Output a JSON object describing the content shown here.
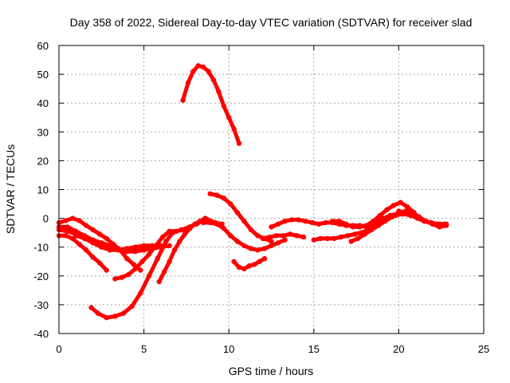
{
  "chart_data": {
    "type": "scatter",
    "title": "Day 358 of 2022, Sidereal Day-to-day VTEC variation (SDTVAR) for receiver slad",
    "xlabel": "GPS time / hours",
    "ylabel": "SDTVAR / TECUs",
    "xlim": [
      0,
      25
    ],
    "ylim": [
      -40,
      60
    ],
    "xticks": [
      0,
      5,
      10,
      15,
      20,
      25
    ],
    "yticks": [
      -40,
      -30,
      -20,
      -10,
      0,
      10,
      20,
      30,
      40,
      50,
      60
    ],
    "grid": true,
    "legend": "none",
    "marker_color": "#ff0000",
    "series": [
      {
        "name": "arc-1",
        "x": [
          7.3,
          7.6,
          7.9,
          8.2,
          8.5,
          8.8,
          9.1,
          9.4,
          9.7,
          10.0,
          10.3,
          10.6
        ],
        "y": [
          41,
          47,
          51,
          53,
          52.5,
          51,
          48,
          44,
          39,
          35,
          31,
          26
        ]
      },
      {
        "name": "arc-2",
        "x": [
          1.9,
          2.3,
          2.8,
          3.3,
          3.8,
          4.3,
          4.8,
          5.3,
          5.8,
          6.3,
          6.7,
          7.2,
          7.7,
          8.1
        ],
        "y": [
          -31,
          -33,
          -34.5,
          -34,
          -33,
          -30.5,
          -26,
          -20,
          -14,
          -8,
          -5,
          -4,
          -3,
          -2
        ]
      },
      {
        "name": "arc-3",
        "x": [
          8.9,
          9.3,
          9.7,
          10.1,
          10.5,
          10.9,
          11.3,
          11.7,
          12.1,
          12.5
        ],
        "y": [
          8.5,
          8,
          7,
          5,
          2,
          -1,
          -4,
          -6,
          -7,
          -8
        ]
      },
      {
        "name": "arc-4",
        "x": [
          0.0,
          0.4,
          0.8,
          1.2,
          1.6,
          2.0,
          2.4,
          2.8,
          3.2,
          3.6,
          4.0,
          4.4,
          4.8
        ],
        "y": [
          -1.5,
          -0.8,
          0,
          -0.8,
          -2.5,
          -4,
          -5.5,
          -7,
          -9,
          -11,
          -14,
          -16,
          -18
        ]
      },
      {
        "name": "arc-5",
        "x": [
          0.0,
          0.5,
          1.0,
          1.5,
          2.0,
          2.5,
          3.0,
          3.5,
          4.0,
          4.5,
          5.0,
          5.5,
          6.0
        ],
        "y": [
          -4,
          -4.5,
          -5.5,
          -7,
          -8.5,
          -10,
          -11,
          -11,
          -10.5,
          -10,
          -9.5,
          -9.5,
          -9.5
        ]
      },
      {
        "name": "arc-6",
        "x": [
          0.0,
          0.4,
          0.8,
          1.2,
          1.6,
          2.0,
          2.4,
          2.8
        ],
        "y": [
          -6,
          -6,
          -7,
          -9,
          -11,
          -13.5,
          -15.5,
          -18
        ]
      },
      {
        "name": "arc-7",
        "x": [
          0.0,
          0.5,
          1.0,
          1.5,
          2.0,
          2.5,
          3.0,
          3.5,
          4.0,
          4.5,
          5.0,
          5.5
        ],
        "y": [
          -3,
          -3,
          -4.5,
          -6,
          -7.5,
          -8.5,
          -9.5,
          -10.5,
          -11.5,
          -11.5,
          -10.5,
          -10
        ]
      },
      {
        "name": "arc-8",
        "x": [
          3.3,
          3.7,
          4.1,
          4.5,
          4.9,
          5.3,
          5.7,
          6.1,
          6.5,
          6.9,
          7.3,
          7.7,
          8.2,
          8.7,
          9.2,
          9.6
        ],
        "y": [
          -21,
          -20.5,
          -19.5,
          -17.5,
          -15,
          -12.5,
          -9.5,
          -6.5,
          -4.5,
          -4.5,
          -4,
          -3,
          -1.5,
          -0.3,
          -1.5,
          -2
        ]
      },
      {
        "name": "arc-9",
        "x": [
          5.9,
          6.2,
          6.5,
          6.8,
          7.1,
          7.4,
          7.7,
          8.0,
          8.3,
          8.6
        ],
        "y": [
          -22,
          -18.5,
          -15,
          -11,
          -8,
          -5.5,
          -3.5,
          -2,
          -1,
          0
        ]
      },
      {
        "name": "arc-10",
        "x": [
          1.0,
          1.5,
          2.0,
          2.5,
          3.0,
          3.5,
          4.0,
          4.5,
          5.0,
          5.5,
          6.0,
          6.5
        ],
        "y": [
          -6,
          -7,
          -8,
          -9,
          -10,
          -11,
          -11.5,
          -11.5,
          -11,
          -10.5,
          -10,
          -9.5
        ]
      },
      {
        "name": "arc-11",
        "x": [
          8.5,
          8.9,
          9.3,
          9.7,
          10.1,
          10.5,
          10.9,
          11.3,
          11.7,
          12.1,
          12.5,
          12.9,
          13.3
        ],
        "y": [
          -1.5,
          -1.5,
          -2,
          -3.5,
          -6,
          -8,
          -9.5,
          -10.5,
          -11,
          -10.5,
          -9.5,
          -8.5,
          -7.5
        ]
      },
      {
        "name": "arc-12",
        "x": [
          10.3,
          10.6,
          10.9,
          11.2,
          11.5,
          11.8,
          12.1
        ],
        "y": [
          -15,
          -17,
          -17.5,
          -16.5,
          -16,
          -15,
          -14
        ]
      },
      {
        "name": "arc-13",
        "x": [
          12.0,
          12.4,
          12.8,
          13.2,
          13.6,
          14.0,
          14.4
        ],
        "y": [
          -7,
          -6.5,
          -6,
          -6,
          -5.5,
          -6,
          -6.5
        ]
      },
      {
        "name": "arc-14",
        "x": [
          12.5,
          12.9,
          13.3,
          13.7,
          14.1,
          14.5,
          14.9,
          15.3,
          15.7,
          16.1,
          16.5,
          16.9,
          17.3,
          17.7,
          18.1
        ],
        "y": [
          -3,
          -2,
          -1,
          -0.5,
          -0.5,
          -1,
          -1.5,
          -2,
          -1.5,
          -1.5,
          -2,
          -2.5,
          -2.5,
          -2.5,
          -3
        ]
      },
      {
        "name": "arc-15",
        "x": [
          15.0,
          15.4,
          15.8,
          16.2,
          16.6,
          17.0,
          17.4,
          17.8,
          18.2,
          18.6,
          19.0,
          19.4,
          19.8,
          20.2,
          20.6
        ],
        "y": [
          -7.5,
          -7,
          -7,
          -7,
          -6.5,
          -6,
          -5.5,
          -5,
          -4,
          -3,
          -1.5,
          0,
          1,
          1.5,
          1.5
        ]
      },
      {
        "name": "arc-16",
        "x": [
          16.1,
          16.5,
          16.9,
          17.3,
          17.7,
          18.1,
          18.5,
          18.9,
          19.3,
          19.7,
          20.1,
          20.5,
          20.9
        ],
        "y": [
          -1,
          -1,
          -2,
          -3,
          -3,
          -2.5,
          -1,
          1,
          3,
          4.5,
          5.5,
          4,
          2
        ]
      },
      {
        "name": "arc-17",
        "x": [
          17.2,
          17.6,
          18.0,
          18.4,
          18.8,
          19.2,
          19.6,
          20.0,
          20.4,
          20.8,
          21.2,
          21.6,
          22.0,
          22.4,
          22.8
        ],
        "y": [
          -8,
          -7,
          -5.5,
          -4,
          -2.5,
          -1,
          0.5,
          2,
          2.5,
          2,
          0.5,
          -1,
          -2,
          -2,
          -2
        ]
      },
      {
        "name": "arc-18",
        "x": [
          18.3,
          18.7,
          19.1,
          19.5,
          19.9,
          20.3,
          20.7,
          21.1,
          21.5,
          21.9,
          22.3,
          22.7
        ],
        "y": [
          -3,
          -1.5,
          0,
          1,
          1.5,
          1.5,
          1,
          0,
          -1,
          -1.5,
          -2,
          -2
        ]
      },
      {
        "name": "arc-19",
        "x": [
          20.0,
          20.4,
          20.8,
          21.2,
          21.6,
          22.0,
          22.4,
          22.8
        ],
        "y": [
          2.5,
          2,
          1,
          0,
          -1,
          -2,
          -3,
          -2.5
        ]
      }
    ]
  }
}
